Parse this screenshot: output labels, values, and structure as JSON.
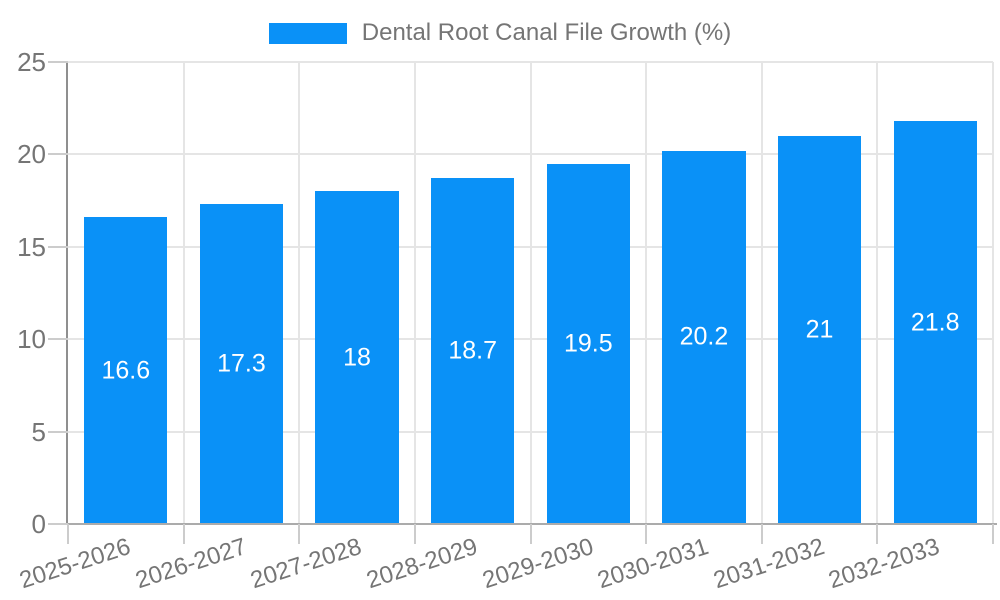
{
  "colors": {
    "bar": "#0a91f7",
    "grid": "#e5e5e5",
    "axis_y": "#8f8f8f",
    "axis_x": "#ababab",
    "tick": "#cccccc",
    "text": "#757575",
    "value_label_text": "#ffffff",
    "background": "#ffffff"
  },
  "chart_data": {
    "type": "bar",
    "title": "Dental Root Canal File Growth (%)",
    "legend_entries": [
      "Dental Root Canal File Growth (%)"
    ],
    "categories": [
      "2025-2026",
      "2026-2027",
      "2027-2028",
      "2028-2029",
      "2029-2030",
      "2030-2031",
      "2031-2032",
      "2032-2033"
    ],
    "values": [
      16.6,
      17.3,
      18,
      18.7,
      19.5,
      20.2,
      21,
      21.8
    ],
    "value_labels": [
      "16.6",
      "17.3",
      "18",
      "18.7",
      "19.5",
      "20.2",
      "21",
      "21.8"
    ],
    "xlabel": "",
    "ylabel": "",
    "ylim": [
      0,
      25
    ],
    "yticks": [
      0,
      5,
      10,
      15,
      20,
      25
    ],
    "ytick_labels": [
      "0",
      "5",
      "10",
      "15",
      "20",
      "25"
    ],
    "grid": true,
    "legend_position": "top-center",
    "x_label_rotation_deg": -18
  }
}
